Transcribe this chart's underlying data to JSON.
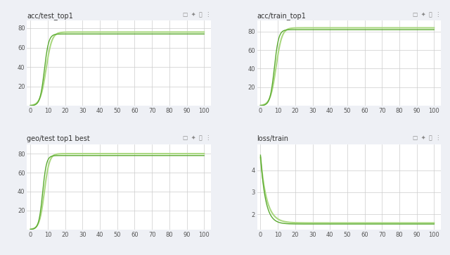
{
  "subplots": [
    {
      "title": "acc/test_top1",
      "x_ticks": [
        0,
        10,
        20,
        30,
        40,
        50,
        60,
        70,
        80,
        90,
        100
      ],
      "y_ticks": [
        20,
        40,
        60,
        80
      ],
      "ylim": [
        0,
        88
      ],
      "xlim": [
        -2,
        104
      ],
      "plateau": 74,
      "plateau2": 76,
      "rise_speed": 8.0,
      "rise_speed2": 6.0,
      "inflect_x": 8,
      "inflect_x2": 9
    },
    {
      "title": "acc/train_top1",
      "x_ticks": [
        0,
        10,
        20,
        30,
        40,
        50,
        60,
        70,
        80,
        90,
        100
      ],
      "y_ticks": [
        20,
        40,
        60,
        80
      ],
      "ylim": [
        0,
        92
      ],
      "xlim": [
        -2,
        104
      ],
      "plateau": 82,
      "plateau2": 84,
      "rise_speed": 8.0,
      "rise_speed2": 6.0,
      "inflect_x": 8,
      "inflect_x2": 9
    },
    {
      "title": "geo/test top1 best",
      "x_ticks": [
        0,
        10,
        20,
        30,
        40,
        50,
        60,
        70,
        80,
        90,
        100
      ],
      "y_ticks": [
        20,
        40,
        60,
        80
      ],
      "ylim": [
        0,
        90
      ],
      "xlim": [
        -2,
        104
      ],
      "plateau": 78,
      "plateau2": 80,
      "rise_speed": 9.0,
      "rise_speed2": 7.0,
      "inflect_x": 7,
      "inflect_x2": 8
    },
    {
      "title": "loss/train",
      "x_ticks": [
        0,
        10,
        20,
        30,
        40,
        50,
        60,
        70,
        80,
        90,
        100
      ],
      "y_ticks": [
        2,
        3,
        4
      ],
      "ylim": [
        1.3,
        5.2
      ],
      "xlim": [
        -2,
        104
      ],
      "start_val": 4.7,
      "start_val2": 4.6,
      "plateau": 1.55,
      "plateau2": 1.6,
      "decay": 0.35,
      "decay2": 0.28,
      "is_loss": true
    }
  ],
  "line_color1": "#5aaa30",
  "line_color2": "#aad880",
  "bg_color": "#eef0f5",
  "panel_bg": "#ffffff",
  "grid_color": "#cccccc",
  "title_fontsize": 7,
  "tick_fontsize": 6
}
